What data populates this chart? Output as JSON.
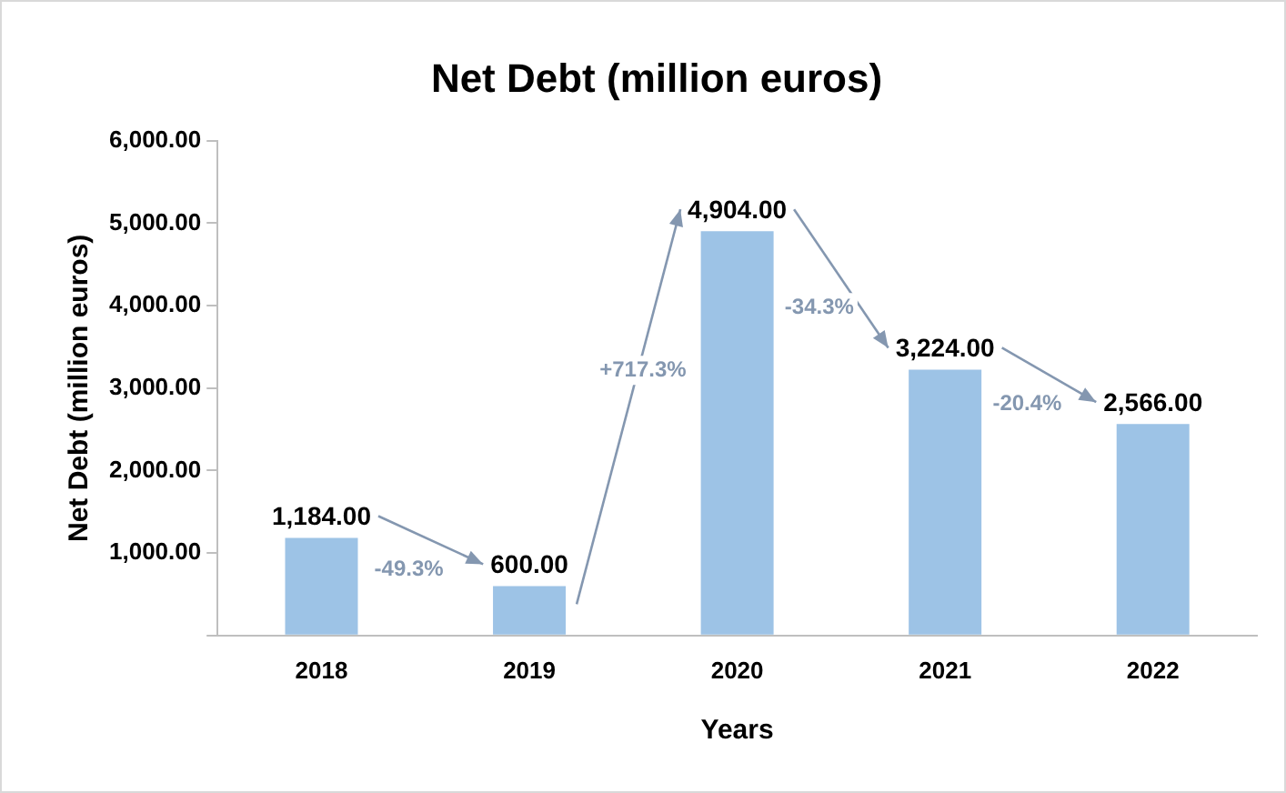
{
  "chart_data": {
    "type": "bar",
    "title": "Net Debt (million euros)",
    "xlabel": "Years",
    "ylabel": "Net Debt (million euros)",
    "categories": [
      "2018",
      "2019",
      "2020",
      "2021",
      "2022"
    ],
    "values": [
      1184,
      600,
      4904,
      3224,
      2566
    ],
    "value_labels": [
      "1,184.00",
      "600.00",
      "4,904.00",
      "3,224.00",
      "2,566.00"
    ],
    "color": "#9dc3e6",
    "ylim": [
      0,
      6000
    ],
    "yticks": [
      {
        "value": 0,
        "label": null
      },
      {
        "value": 1000,
        "label": "1,000.00"
      },
      {
        "value": 2000,
        "label": "2,000.00"
      },
      {
        "value": 3000,
        "label": "3,000.00"
      },
      {
        "value": 4000,
        "label": "4,000.00"
      },
      {
        "value": 5000,
        "label": "5,000.00"
      },
      {
        "value": 6000,
        "label": "6,000.00"
      }
    ],
    "annotations": [
      "-49.3%",
      "+717.3%",
      "-34.3%",
      "-20.4%"
    ],
    "grid": false,
    "legend": false
  }
}
